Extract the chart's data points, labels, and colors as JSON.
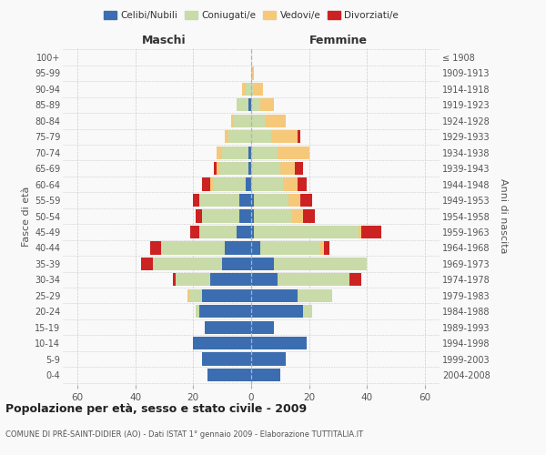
{
  "age_groups": [
    "0-4",
    "5-9",
    "10-14",
    "15-19",
    "20-24",
    "25-29",
    "30-34",
    "35-39",
    "40-44",
    "45-49",
    "50-54",
    "55-59",
    "60-64",
    "65-69",
    "70-74",
    "75-79",
    "80-84",
    "85-89",
    "90-94",
    "95-99",
    "100+"
  ],
  "birth_years": [
    "2004-2008",
    "1999-2003",
    "1994-1998",
    "1989-1993",
    "1984-1988",
    "1979-1983",
    "1974-1978",
    "1969-1973",
    "1964-1968",
    "1959-1963",
    "1954-1958",
    "1949-1953",
    "1944-1948",
    "1939-1943",
    "1934-1938",
    "1929-1933",
    "1924-1928",
    "1919-1923",
    "1914-1918",
    "1909-1913",
    "≤ 1908"
  ],
  "male": {
    "celibi": [
      15,
      17,
      20,
      16,
      18,
      17,
      14,
      10,
      9,
      5,
      4,
      4,
      2,
      1,
      1,
      0,
      0,
      1,
      0,
      0,
      0
    ],
    "coniugati": [
      0,
      0,
      0,
      0,
      1,
      4,
      12,
      24,
      22,
      13,
      13,
      14,
      11,
      10,
      9,
      8,
      6,
      4,
      2,
      0,
      0
    ],
    "vedovi": [
      0,
      0,
      0,
      0,
      0,
      1,
      0,
      0,
      0,
      0,
      0,
      0,
      1,
      1,
      2,
      1,
      1,
      0,
      1,
      0,
      0
    ],
    "divorziati": [
      0,
      0,
      0,
      0,
      0,
      0,
      1,
      4,
      4,
      3,
      2,
      2,
      3,
      1,
      0,
      0,
      0,
      0,
      0,
      0,
      0
    ]
  },
  "female": {
    "nubili": [
      10,
      12,
      19,
      8,
      18,
      16,
      9,
      8,
      3,
      1,
      1,
      1,
      0,
      0,
      0,
      0,
      0,
      0,
      0,
      0,
      0
    ],
    "coniugate": [
      0,
      0,
      0,
      0,
      3,
      12,
      25,
      32,
      21,
      36,
      13,
      12,
      11,
      10,
      9,
      7,
      5,
      3,
      1,
      0,
      0
    ],
    "vedove": [
      0,
      0,
      0,
      0,
      0,
      0,
      0,
      0,
      1,
      1,
      4,
      4,
      5,
      5,
      11,
      9,
      7,
      5,
      3,
      1,
      0
    ],
    "divorziate": [
      0,
      0,
      0,
      0,
      0,
      0,
      4,
      0,
      2,
      7,
      4,
      4,
      3,
      3,
      0,
      1,
      0,
      0,
      0,
      0,
      0
    ]
  },
  "colors": {
    "celibi": "#3b6db0",
    "coniugati": "#c8dba8",
    "vedovi": "#f5c87a",
    "divorziati": "#cc2222"
  },
  "title": "Popolazione per età, sesso e stato civile - 2009",
  "subtitle": "COMUNE DI PRÉ-SAINT-DIDIER (AO) - Dati ISTAT 1° gennaio 2009 - Elaborazione TUTTITALIA.IT",
  "xlabel_left": "Maschi",
  "xlabel_right": "Femmine",
  "ylabel_left": "Fasce di età",
  "ylabel_right": "Anni di nascita",
  "xlim": 65,
  "xtick_vals": [
    -60,
    -40,
    -20,
    0,
    20,
    40,
    60
  ],
  "background_color": "#f9f9f9",
  "grid_color": "#cccccc"
}
